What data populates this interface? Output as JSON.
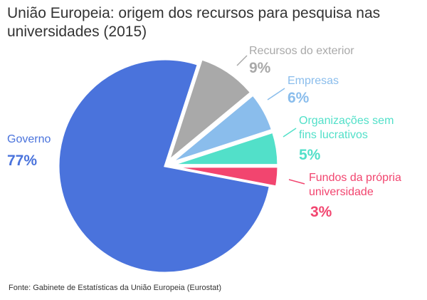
{
  "chart_data": {
    "type": "pie",
    "title": "União Europeia: origem dos recursos para pesquisa nas universidades (2015)",
    "categories": [
      "Recursos do exterior",
      "Empresas",
      "Organizações sem fins lucrativos",
      "Fundos da própria universidade",
      "Governo"
    ],
    "values": [
      9,
      6,
      5,
      3,
      77
    ],
    "value_labels": [
      "9%",
      "6%",
      "5%",
      "3%",
      "77%"
    ],
    "colors": [
      "#a9a9a9",
      "#8abdec",
      "#52e0c9",
      "#f2456f",
      "#4a73dc"
    ],
    "source": "Fonte: Gabinete de Estatísticas da União Europeia (Eurostat)"
  }
}
